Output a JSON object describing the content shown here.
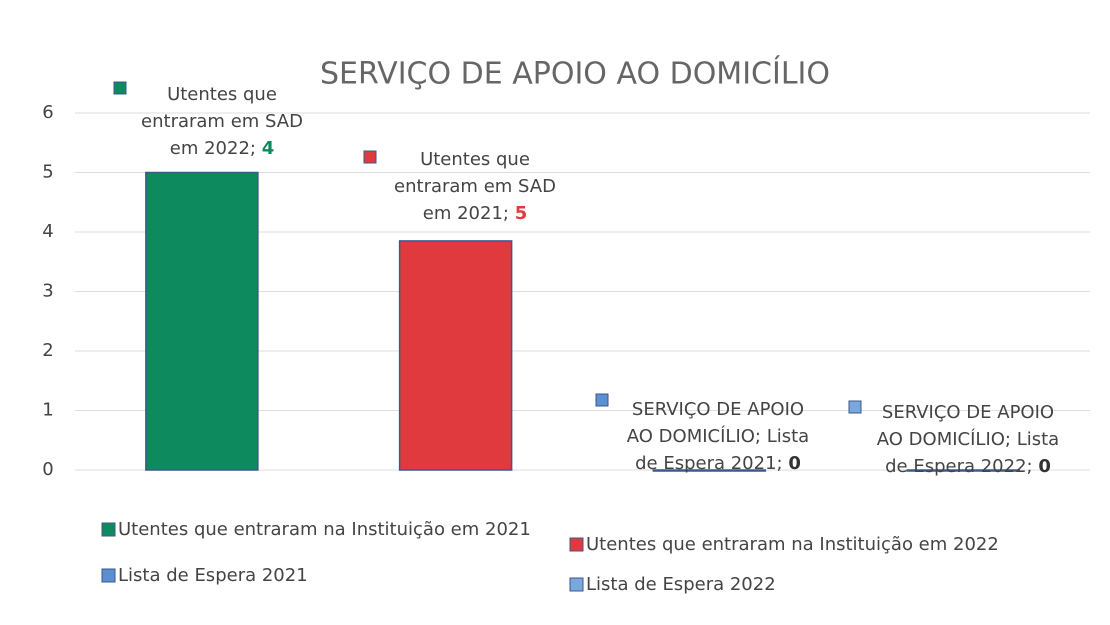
{
  "chart_data": {
    "type": "bar",
    "title": "SERVIÇO DE APOIO AO DOMICÍLIO",
    "ylim": [
      0,
      6
    ],
    "yticks": [
      0,
      1,
      2,
      3,
      4,
      5,
      6
    ],
    "grid": true,
    "legend": "bottom",
    "series": [
      {
        "name": "Utentes que entraram na Instituição em 2021",
        "color": "#0e8a5f",
        "values": [
          5
        ]
      },
      {
        "name": "Utentes que entraram na Instituição em 2022",
        "color": "#e03a3e",
        "values": [
          3.85
        ]
      },
      {
        "name": "Lista de Espera 2021",
        "color": "#5b8fd0",
        "values": [
          0
        ]
      },
      {
        "name": "Lista de Espera 2022",
        "color": "#7aa7dc",
        "values": [
          0
        ]
      }
    ],
    "annotations": [
      {
        "lines": [
          "Utentes que",
          "entraram em SAD",
          "em 2022;"
        ],
        "number": "4"
      },
      {
        "lines": [
          "Utentes que",
          "entraram em SAD",
          "em 2021;"
        ],
        "number": "5"
      },
      {
        "lines": [
          "SERVIÇO DE APOIO",
          "AO DOMICÍLIO; Lista",
          "de Espera 2021;"
        ],
        "number": "0"
      },
      {
        "lines": [
          "SERVIÇO DE APOIO",
          "AO DOMICÍLIO; Lista",
          "de Espera 2022;"
        ],
        "number": "0"
      }
    ]
  }
}
